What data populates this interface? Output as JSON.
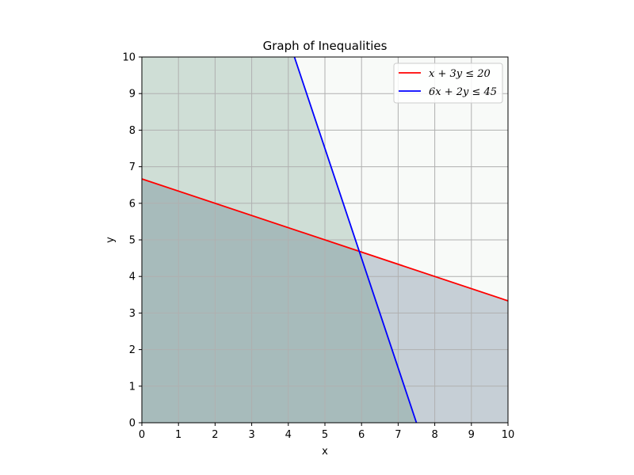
{
  "chart_data": {
    "type": "area",
    "title": "Graph of Inequalities",
    "xlabel": "x",
    "ylabel": "y",
    "xlim": [
      0,
      10
    ],
    "ylim": [
      0,
      10
    ],
    "x_ticks": [
      "0",
      "1",
      "2",
      "3",
      "4",
      "5",
      "6",
      "7",
      "8",
      "9",
      "10"
    ],
    "y_ticks": [
      "0",
      "1",
      "2",
      "3",
      "4",
      "5",
      "6",
      "7",
      "8",
      "9",
      "10"
    ],
    "grid": true,
    "legend_position": "top-right",
    "series": [
      {
        "name": "x + 3y ≤ 20",
        "color": "#ff0000",
        "x": [
          0,
          10
        ],
        "y": [
          6.667,
          3.333
        ]
      },
      {
        "name": "6x + 2y ≤ 45",
        "color": "#0000ff",
        "x": [
          4.167,
          7.5
        ],
        "y": [
          10,
          0
        ]
      }
    ],
    "shaded_regions": [
      {
        "region": "x + 3y ≤ 20",
        "color": "#2f4f6f",
        "opacity": 0.25
      },
      {
        "region": "6x + 2y ≤ 45",
        "color": "#2f6f4f",
        "opacity": 0.2
      }
    ]
  }
}
